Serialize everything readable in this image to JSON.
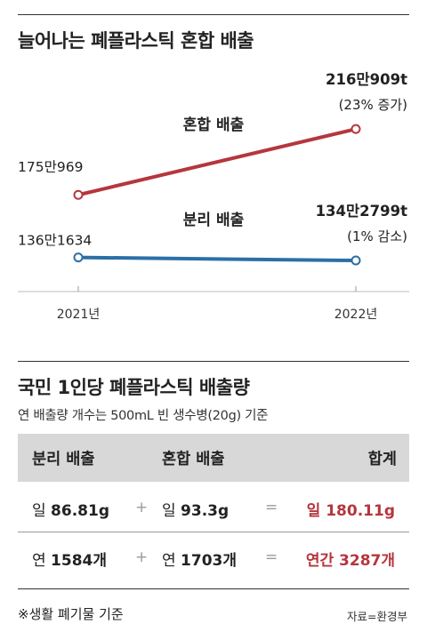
{
  "title": "늘어나는 폐플라스틱 혼합 배출",
  "chart_data": {
    "type": "line",
    "x": [
      "2021년",
      "2022년"
    ],
    "series": [
      {
        "name": "혼합 배출",
        "values": [
          1750969,
          2160909
        ],
        "point_labels": [
          "175만969",
          "216만909t"
        ],
        "change": "(23% 증가)",
        "color": "#b5363d"
      },
      {
        "name": "분리 배출",
        "values": [
          1361634,
          1342799
        ],
        "point_labels": [
          "136만1634",
          "134만2799t"
        ],
        "change": "(1% 감소)",
        "color": "#2c6fa6"
      }
    ]
  },
  "section2": {
    "title": "국민 1인당 폐플라스틱 배출량",
    "subtitle": "연 배출량 개수는 500mL 빈 생수병(20g) 기준"
  },
  "table": {
    "headers": [
      "분리 배출",
      "혼합 배출",
      "합계"
    ],
    "rows": [
      {
        "separate_prefix": "일",
        "separate_value": "86.81g",
        "plus": "+",
        "mixed_prefix": "일",
        "mixed_value": "93.3g",
        "equals": "=",
        "total": "일 180.11g"
      },
      {
        "separate_prefix": "연",
        "separate_value": "1584개",
        "plus": "+",
        "mixed_prefix": "연",
        "mixed_value": "1703개",
        "equals": "=",
        "total": "연간 3287개"
      }
    ]
  },
  "footnote": "※생활 폐기물 기준",
  "source": "자료=환경부"
}
